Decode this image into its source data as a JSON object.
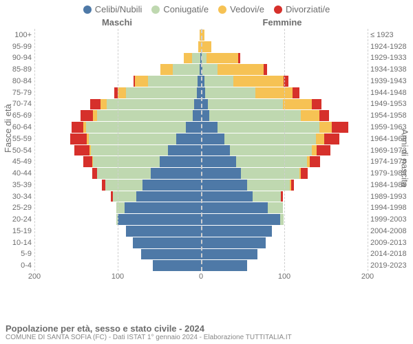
{
  "chart": {
    "type": "pyramid-stacked-bar",
    "background_color": "#ffffff",
    "grid_color": "#cfcfcf",
    "text_color": "#6d6d6d",
    "row_border": "#ffffff",
    "row_border_width": 1,
    "font_family": "Arial",
    "legend_fontsize": 13,
    "label_fontsize": 13,
    "tick_fontsize": 11,
    "title_fontsize": 13,
    "sub_fontsize": 10,
    "legend": [
      {
        "label": "Celibi/Nubili",
        "color": "#4e79a7"
      },
      {
        "label": "Coniugati/e",
        "color": "#bfd8b0"
      },
      {
        "label": "Vedovi/e",
        "color": "#f6c254"
      },
      {
        "label": "Divorziati/e",
        "color": "#d6302b"
      }
    ],
    "left_header": "Maschi",
    "right_header": "Femmine",
    "y_title_left": "Fasce di età",
    "y_title_right": "Anni di nascita",
    "x_max": 200,
    "x_ticks_left": [
      200,
      100,
      0
    ],
    "x_ticks_right": [
      100,
      200
    ],
    "age_bands": [
      {
        "age": "100+",
        "birth": "≤ 1923",
        "m": [
          0,
          0,
          2,
          0
        ],
        "f": [
          0,
          0,
          4,
          0
        ]
      },
      {
        "age": "95-99",
        "birth": "1924-1928",
        "m": [
          0,
          0,
          3,
          0
        ],
        "f": [
          0,
          0,
          12,
          0
        ]
      },
      {
        "age": "90-94",
        "birth": "1929-1933",
        "m": [
          1,
          10,
          10,
          0
        ],
        "f": [
          1,
          6,
          38,
          2
        ]
      },
      {
        "age": "85-89",
        "birth": "1934-1938",
        "m": [
          2,
          32,
          15,
          0
        ],
        "f": [
          2,
          18,
          55,
          4
        ]
      },
      {
        "age": "80-84",
        "birth": "1939-1943",
        "m": [
          4,
          60,
          15,
          2
        ],
        "f": [
          4,
          35,
          60,
          6
        ]
      },
      {
        "age": "75-79",
        "birth": "1944-1948",
        "m": [
          5,
          85,
          10,
          4
        ],
        "f": [
          5,
          60,
          45,
          8
        ]
      },
      {
        "age": "70-74",
        "birth": "1949-1953",
        "m": [
          8,
          105,
          8,
          12
        ],
        "f": [
          8,
          90,
          35,
          12
        ]
      },
      {
        "age": "65-69",
        "birth": "1954-1958",
        "m": [
          10,
          115,
          5,
          15
        ],
        "f": [
          10,
          110,
          22,
          12
        ]
      },
      {
        "age": "60-64",
        "birth": "1959-1963",
        "m": [
          18,
          120,
          3,
          14
        ],
        "f": [
          20,
          122,
          15,
          20
        ]
      },
      {
        "age": "55-59",
        "birth": "1964-1968",
        "m": [
          30,
          105,
          2,
          20
        ],
        "f": [
          28,
          110,
          10,
          18
        ]
      },
      {
        "age": "50-54",
        "birth": "1969-1973",
        "m": [
          40,
          92,
          2,
          18
        ],
        "f": [
          35,
          98,
          6,
          16
        ]
      },
      {
        "age": "45-49",
        "birth": "1974-1978",
        "m": [
          50,
          80,
          1,
          10
        ],
        "f": [
          42,
          85,
          4,
          12
        ]
      },
      {
        "age": "40-44",
        "birth": "1979-1983",
        "m": [
          60,
          65,
          0,
          6
        ],
        "f": [
          48,
          70,
          2,
          8
        ]
      },
      {
        "age": "35-39",
        "birth": "1984-1988",
        "m": [
          70,
          45,
          0,
          4
        ],
        "f": [
          55,
          52,
          1,
          4
        ]
      },
      {
        "age": "30-34",
        "birth": "1989-1993",
        "m": [
          78,
          28,
          0,
          2
        ],
        "f": [
          62,
          34,
          0,
          2
        ]
      },
      {
        "age": "25-29",
        "birth": "1994-1998",
        "m": [
          92,
          10,
          0,
          0
        ],
        "f": [
          80,
          18,
          0,
          0
        ]
      },
      {
        "age": "20-24",
        "birth": "1999-2003",
        "m": [
          100,
          2,
          0,
          0
        ],
        "f": [
          95,
          4,
          0,
          0
        ]
      },
      {
        "age": "15-19",
        "birth": "2004-2008",
        "m": [
          90,
          0,
          0,
          0
        ],
        "f": [
          85,
          0,
          0,
          0
        ]
      },
      {
        "age": "10-14",
        "birth": "2009-2013",
        "m": [
          82,
          0,
          0,
          0
        ],
        "f": [
          78,
          0,
          0,
          0
        ]
      },
      {
        "age": "5-9",
        "birth": "2014-2018",
        "m": [
          72,
          0,
          0,
          0
        ],
        "f": [
          68,
          0,
          0,
          0
        ]
      },
      {
        "age": "0-4",
        "birth": "2019-2023",
        "m": [
          58,
          0,
          0,
          0
        ],
        "f": [
          55,
          0,
          0,
          0
        ]
      }
    ],
    "title": "Popolazione per età, sesso e stato civile - 2024",
    "subtitle": "COMUNE DI SANTA SOFIA (FC) - Dati ISTAT 1° gennaio 2024 - Elaborazione TUTTITALIA.IT"
  }
}
